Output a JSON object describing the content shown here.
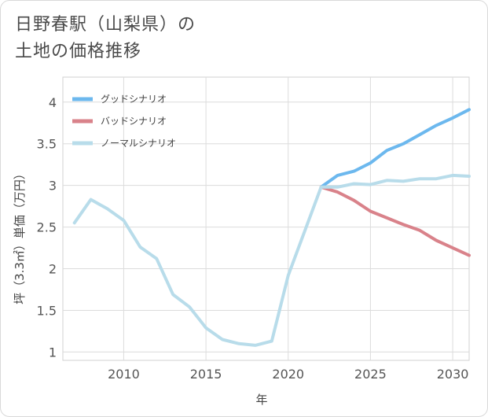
{
  "title_line1": "日野春駅（山梨県）の",
  "title_line2": "土地の価格推移",
  "chart_data": {
    "type": "line",
    "title": "日野春駅（山梨県）の土地の価格推移",
    "xlabel": "年",
    "ylabel": "坪（3.3㎡）単価（万円）",
    "xlim": [
      2006.3,
      2031
    ],
    "ylim": [
      0.9,
      4.3
    ],
    "xticks": [
      2010,
      2015,
      2020,
      2025,
      2030
    ],
    "yticks": [
      1,
      1.5,
      2,
      2.5,
      3,
      3.5,
      4
    ],
    "series": [
      {
        "name": "グッドシナリオ",
        "color": "#6cb8ee",
        "x": [
          2022,
          2023,
          2024,
          2025,
          2026,
          2027,
          2028,
          2029,
          2030,
          2031
        ],
        "y": [
          2.98,
          3.12,
          3.17,
          3.27,
          3.42,
          3.5,
          3.61,
          3.72,
          3.81,
          3.91
        ]
      },
      {
        "name": "バッドシナリオ",
        "color": "#d9828a",
        "x": [
          2022,
          2023,
          2024,
          2025,
          2026,
          2027,
          2028,
          2029,
          2030,
          2031
        ],
        "y": [
          2.98,
          2.92,
          2.82,
          2.69,
          2.61,
          2.53,
          2.46,
          2.34,
          2.25,
          2.16
        ]
      },
      {
        "name": "ノーマルシナリオ",
        "color": "#b8dcea",
        "x": [
          2007,
          2008,
          2009,
          2010,
          2011,
          2012,
          2013,
          2014,
          2015,
          2016,
          2017,
          2018,
          2019,
          2020,
          2021,
          2022,
          2023,
          2024,
          2025,
          2026,
          2027,
          2028,
          2029,
          2030,
          2031
        ],
        "y": [
          2.55,
          2.83,
          2.72,
          2.58,
          2.26,
          2.12,
          1.69,
          1.54,
          1.29,
          1.15,
          1.1,
          1.08,
          1.13,
          1.92,
          2.45,
          2.98,
          2.98,
          3.02,
          3.01,
          3.06,
          3.05,
          3.08,
          3.08,
          3.12,
          3.11
        ]
      }
    ],
    "legend_position": "top-left"
  }
}
